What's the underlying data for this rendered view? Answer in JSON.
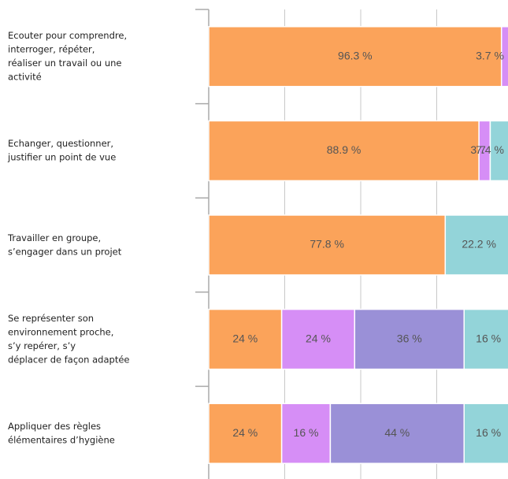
{
  "chart_data": {
    "type": "stacked-barh",
    "categories": [
      [
        "Ecouter pour comprendre,",
        "interroger, répéter,",
        "réaliser un travail ou une",
        "activité"
      ],
      [
        "Echanger, questionner,",
        "justifier un point de vue"
      ],
      [
        "Travailler en groupe,",
        "s’engager dans un projet"
      ],
      [
        "Se représenter son",
        "environnement proche,",
        "s’y repérer, s’y",
        "déplacer de façon adaptée"
      ],
      [
        "Appliquer des règles",
        "élémentaires d’hygiène"
      ]
    ],
    "series": [
      {
        "color": "#fba35a",
        "values": [
          96.3,
          88.9,
          77.8,
          24,
          24
        ],
        "value_labels": [
          "96.3 %",
          "88.9 %",
          "77.8 %",
          "24 %",
          "24 %"
        ]
      },
      {
        "color": "#d68ef6",
        "values": [
          3.7,
          3.7,
          0,
          24,
          16
        ],
        "value_labels": [
          "3.7 %",
          "3.7 %",
          null,
          "24 %",
          "16 %"
        ]
      },
      {
        "color": "#9a90d7",
        "values": [
          0,
          0,
          0,
          36,
          44
        ],
        "value_labels": [
          null,
          null,
          null,
          "36 %",
          "44 %"
        ]
      },
      {
        "color": "#93d4d9",
        "values": [
          0,
          7.4,
          22.2,
          16,
          16
        ],
        "value_labels": [
          null,
          "7.4 %",
          "22.2 %",
          "16 %",
          "16 %"
        ]
      }
    ],
    "xlim": [
      0,
      100
    ],
    "xticks": [
      0,
      25,
      50,
      75,
      100
    ],
    "grid": true
  }
}
